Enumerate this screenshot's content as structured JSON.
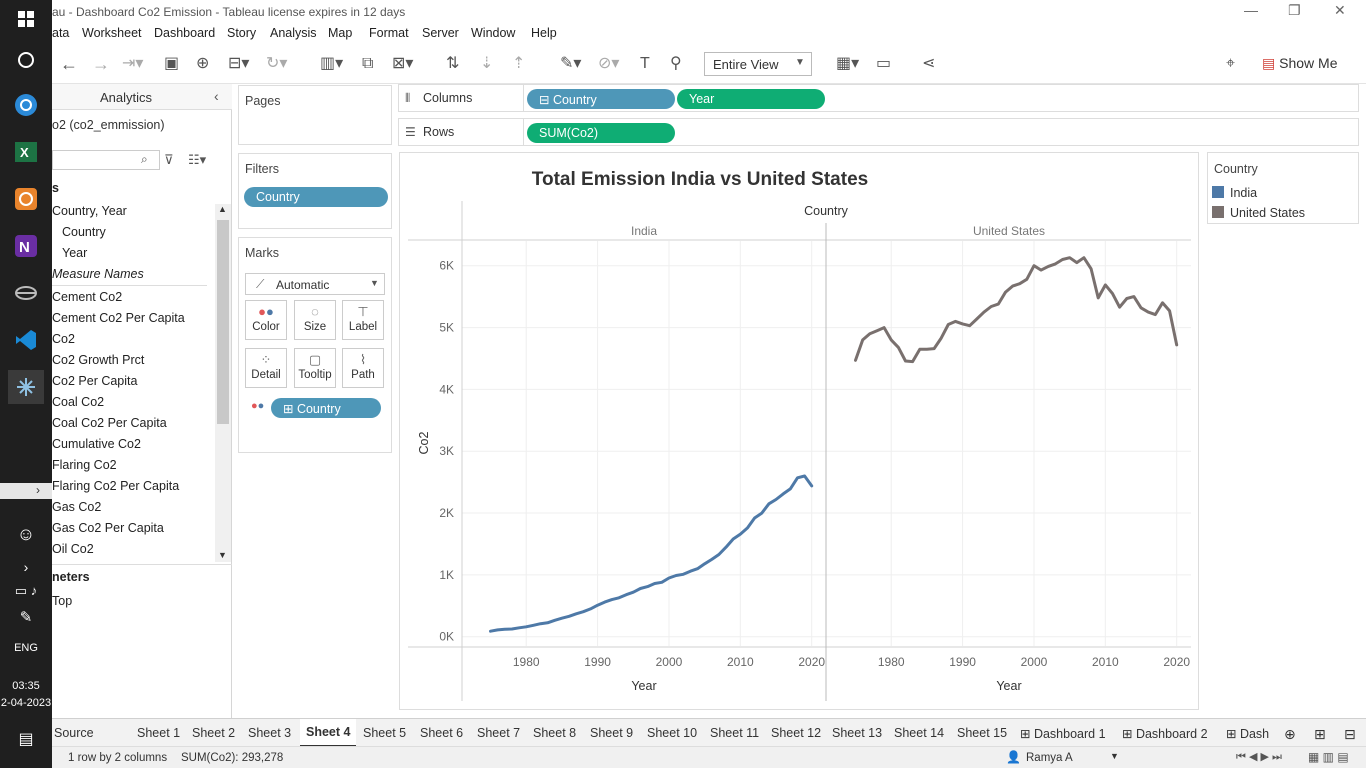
{
  "window": {
    "title": "au - Dashboard  Co2 Emission - Tableau license expires in 12 days",
    "controls": {
      "minimize": "—",
      "maximize": "❐",
      "close": "✕"
    }
  },
  "taskbar": {
    "lang": "ENG",
    "time": "03:35",
    "date": "2-04-2023"
  },
  "menu": [
    "ata",
    "Worksheet",
    "Dashboard",
    "Story",
    "Analysis",
    "Map",
    "Format",
    "Server",
    "Window",
    "Help"
  ],
  "toolbar": {
    "view_mode": "Entire View",
    "show_me": "Show Me"
  },
  "left_pane": {
    "tab_label": "Analytics",
    "datasource": "o2 (co2_emmission)",
    "tables_header": "s",
    "hierarchy": "Country, Year",
    "hierarchy_children": [
      "Country",
      "Year"
    ],
    "measure_names": "Measure Names",
    "fields": [
      "Cement Co2",
      "Cement Co2 Per Capita",
      "Co2",
      "Co2 Growth Prct",
      "Co2 Per Capita",
      "Coal Co2",
      "Coal Co2 Per Capita",
      "Cumulative Co2",
      "Flaring Co2",
      "Flaring Co2 Per Capita",
      "Gas Co2",
      "Gas Co2 Per Capita",
      "Oil Co2"
    ],
    "parameters_header": "neters",
    "parameters": [
      "Top"
    ]
  },
  "cards": {
    "pages": "Pages",
    "filters": "Filters",
    "filter_pill": "Country",
    "marks": "Marks",
    "mark_type": "Automatic",
    "mark_buttons": [
      "Color",
      "Size",
      "Label",
      "Detail",
      "Tooltip",
      "Path"
    ],
    "marks_pill": "Country"
  },
  "shelves": {
    "columns_label": "Columns",
    "rows_label": "Rows",
    "columns_pills": [
      "Country",
      "Year"
    ],
    "rows_pills": [
      "SUM(Co2)"
    ]
  },
  "legend": {
    "title": "Country",
    "items": [
      "India",
      "United States"
    ],
    "colors": [
      "#4e79a7",
      "#79706e"
    ]
  },
  "chart_data": {
    "type": "line",
    "title": "Total Emission India vs United States",
    "column_header": "Country",
    "panels": [
      "India",
      "United States"
    ],
    "xlabel": "Year",
    "ylabel": "Co2",
    "xlim": [
      1971,
      2022
    ],
    "xticks": [
      1980,
      1990,
      2000,
      2010,
      2020
    ],
    "ylim": [
      -150,
      6400
    ],
    "yticks": [
      0,
      1000,
      2000,
      3000,
      4000,
      5000,
      6000
    ],
    "ytick_labels": [
      "0K",
      "1K",
      "2K",
      "3K",
      "4K",
      "5K",
      "6K"
    ],
    "x": [
      1975,
      1976,
      1977,
      1978,
      1979,
      1980,
      1981,
      1982,
      1983,
      1984,
      1985,
      1986,
      1987,
      1988,
      1989,
      1990,
      1991,
      1992,
      1993,
      1994,
      1995,
      1996,
      1997,
      1998,
      1999,
      2000,
      2001,
      2002,
      2003,
      2004,
      2005,
      2006,
      2007,
      2008,
      2009,
      2010,
      2011,
      2012,
      2013,
      2014,
      2015,
      2016,
      2017,
      2018,
      2019,
      2020
    ],
    "series": [
      {
        "name": "India",
        "color": "#4e79a7",
        "values": [
          90,
          110,
          120,
          125,
          145,
          160,
          185,
          210,
          225,
          265,
          300,
          330,
          370,
          405,
          450,
          510,
          560,
          600,
          630,
          680,
          720,
          780,
          810,
          860,
          880,
          950,
          990,
          1010,
          1060,
          1100,
          1180,
          1250,
          1330,
          1450,
          1580,
          1660,
          1760,
          1920,
          2000,
          2150,
          2220,
          2310,
          2390,
          2570,
          2600,
          2440
        ]
      },
      {
        "name": "United States",
        "color": "#79706e",
        "values": [
          4470,
          4800,
          4900,
          4950,
          5000,
          4800,
          4680,
          4460,
          4450,
          4650,
          4650,
          4660,
          4830,
          5050,
          5100,
          5060,
          5030,
          5140,
          5250,
          5340,
          5380,
          5570,
          5670,
          5710,
          5780,
          6000,
          5930,
          5990,
          6030,
          6100,
          6130,
          6050,
          6130,
          5950,
          5480,
          5690,
          5550,
          5330,
          5470,
          5500,
          5320,
          5250,
          5210,
          5400,
          5270,
          4720
        ]
      }
    ]
  },
  "tabs": {
    "items": [
      "Source",
      "Sheet 1",
      "Sheet 2",
      "Sheet 3",
      "Sheet 4",
      "Sheet 5",
      "Sheet 6",
      "Sheet 7",
      "Sheet 8",
      "Sheet 9",
      "Sheet 10",
      "Sheet 11",
      "Sheet 12",
      "Sheet 13",
      "Sheet 14",
      "Sheet 15",
      "Dashboard 1",
      "Dashboard 2",
      "Dash"
    ],
    "active": "Sheet 4"
  },
  "status": {
    "rows_cols": "1 row by 2 columns",
    "sum": "SUM(Co2): 293,278",
    "user": "Ramya A"
  }
}
